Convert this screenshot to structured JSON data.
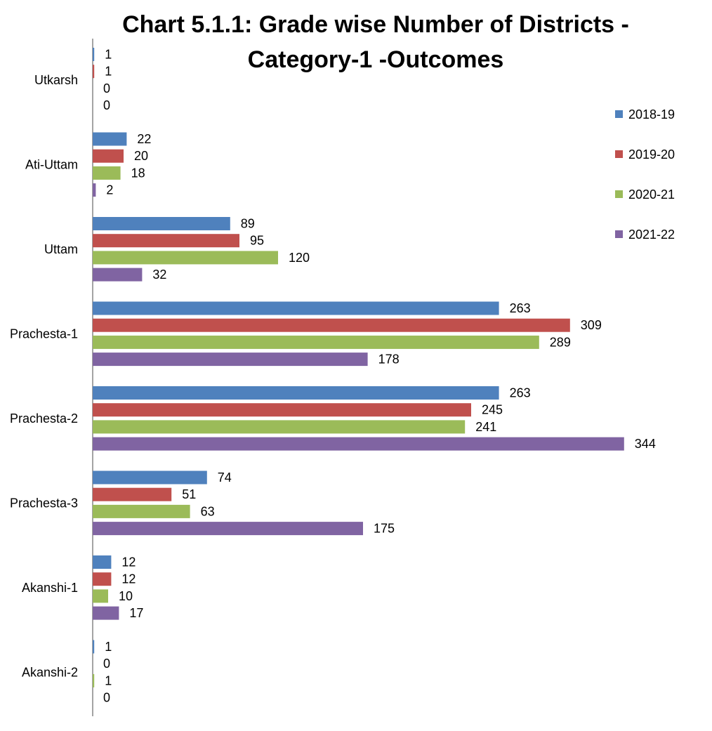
{
  "chart_data": {
    "type": "bar",
    "orientation": "horizontal",
    "title_line1": "Chart 5.1.1: Grade wise Number of Districts -",
    "title_line2": "Category-1 -Outcomes",
    "categories": [
      "Utkarsh",
      "Ati-Uttam",
      "Uttam",
      "Prachesta-1",
      "Prachesta-2",
      "Prachesta-3",
      "Akanshi-1",
      "Akanshi-2"
    ],
    "series": [
      {
        "name": "2018-19",
        "color": "#4f81bd",
        "values": [
          1,
          22,
          89,
          263,
          263,
          74,
          12,
          1
        ]
      },
      {
        "name": "2019-20",
        "color": "#c0504d",
        "values": [
          1,
          20,
          95,
          309,
          245,
          51,
          12,
          0
        ]
      },
      {
        "name": "2020-21",
        "color": "#9bbb59",
        "values": [
          0,
          18,
          120,
          289,
          241,
          63,
          10,
          1
        ]
      },
      {
        "name": "2021-22",
        "color": "#8064a2",
        "values": [
          0,
          2,
          32,
          178,
          344,
          175,
          17,
          0
        ]
      }
    ],
    "xlim": [
      0,
      400
    ],
    "grid": false,
    "legend_position": "right"
  }
}
